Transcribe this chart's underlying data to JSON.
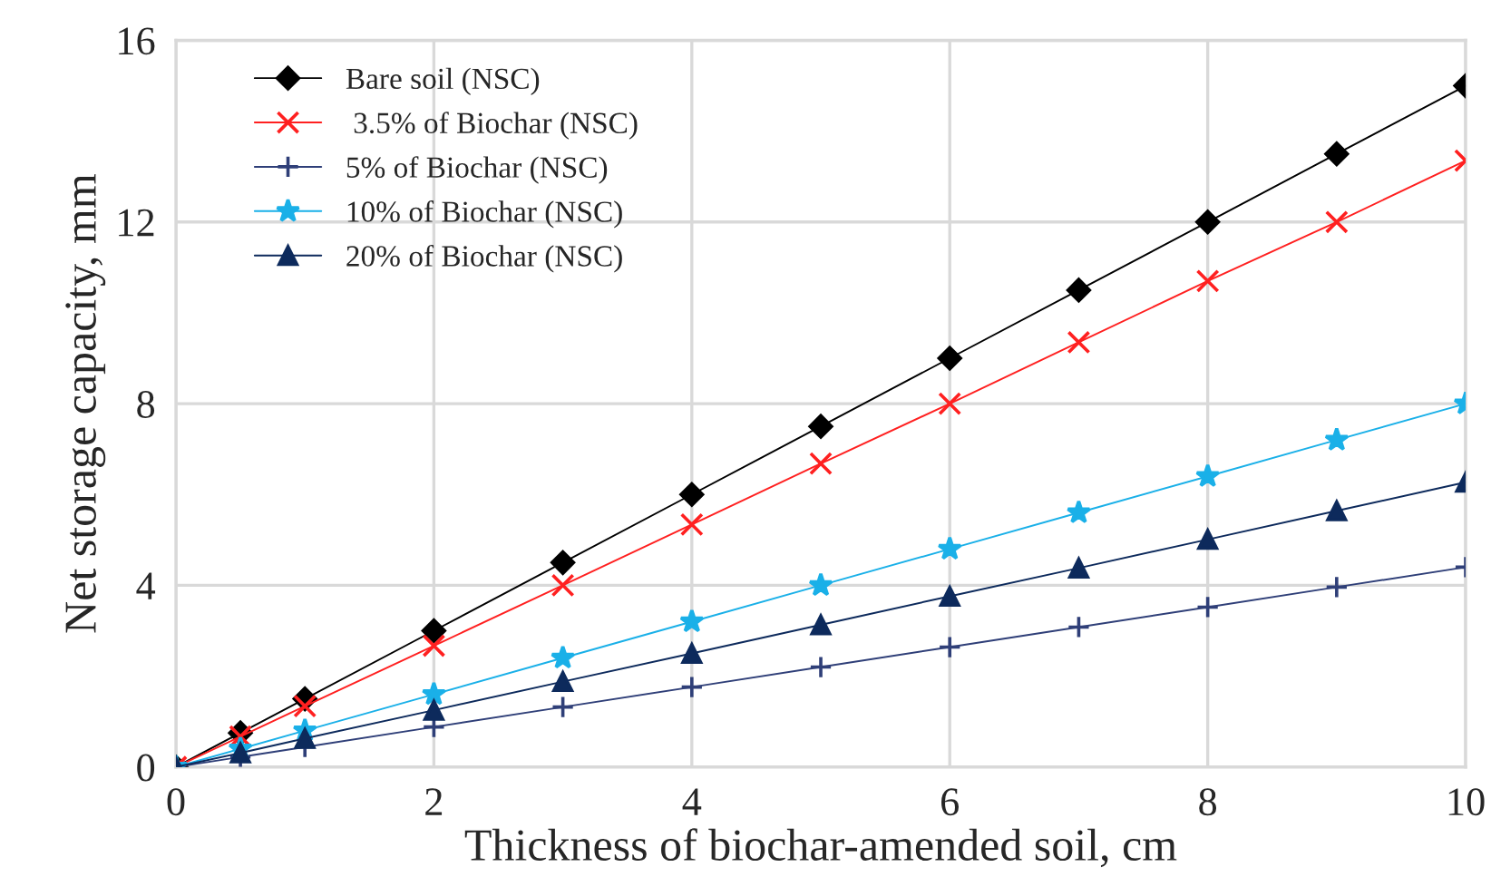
{
  "chart_data": {
    "type": "line",
    "xlabel": "Thickness of biochar-amended soil, cm",
    "ylabel": "Net storage capacity, mm",
    "x": [
      0,
      0.5,
      1,
      2,
      3,
      4,
      5,
      6,
      7,
      8,
      9,
      10
    ],
    "series": [
      {
        "name": "Bare soil (NSC)",
        "color": "#000000",
        "marker": "diamond",
        "values": [
          0,
          0.75,
          1.5,
          3,
          4.5,
          6,
          7.5,
          9,
          10.5,
          12,
          13.5,
          15
        ]
      },
      {
        "name": " 3.5% of Biochar (NSC)",
        "color": "#ff2020",
        "marker": "cross",
        "values": [
          0,
          0.67,
          1.34,
          2.67,
          4.0,
          5.34,
          6.68,
          8.0,
          9.35,
          10.7,
          12.0,
          13.35
        ]
      },
      {
        "name": "5% of Biochar (NSC)",
        "color": "#2f3f78",
        "marker": "plus",
        "values": [
          0,
          0.22,
          0.44,
          0.88,
          1.32,
          1.76,
          2.2,
          2.64,
          3.08,
          3.52,
          3.96,
          4.4
        ]
      },
      {
        "name": "10% of Biochar (NSC)",
        "color": "#1ab0e8",
        "marker": "star",
        "values": [
          0,
          0.4,
          0.8,
          1.6,
          2.4,
          3.2,
          4.0,
          4.8,
          5.6,
          6.4,
          7.2,
          8.0
        ]
      },
      {
        "name": "20% of Biochar (NSC)",
        "color": "#0d2a5c",
        "marker": "triangle",
        "values": [
          0,
          0.31,
          0.63,
          1.25,
          1.88,
          2.5,
          3.13,
          3.76,
          4.38,
          5.01,
          5.64,
          6.27
        ]
      }
    ],
    "xlim": [
      0,
      10
    ],
    "xticks": [
      0,
      2,
      4,
      6,
      8,
      10
    ],
    "ylim": [
      0,
      16
    ],
    "yticks": [
      0,
      4,
      8,
      12,
      16
    ],
    "grid": true,
    "legend": "top left"
  }
}
